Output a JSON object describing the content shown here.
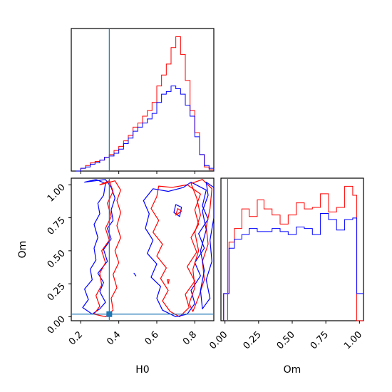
{
  "chart_data": {
    "type": "corner",
    "parameters": [
      "H0",
      "Om"
    ],
    "colors": {
      "red_series": "#ff0000",
      "blue_series": "#0000ff",
      "truth": "#1f77b4"
    },
    "truth": {
      "H0": 0.35,
      "Om": 0.02
    },
    "panels": [
      {
        "id": "hist_H0",
        "type": "histogram",
        "xlim": [
          0.15,
          0.9
        ],
        "bins": [
          0.175,
          0.2,
          0.225,
          0.25,
          0.275,
          0.3,
          0.325,
          0.35,
          0.375,
          0.4,
          0.425,
          0.45,
          0.475,
          0.5,
          0.525,
          0.55,
          0.575,
          0.6,
          0.625,
          0.65,
          0.675,
          0.7,
          0.725,
          0.75,
          0.775,
          0.8,
          0.825,
          0.85,
          0.875,
          0.9
        ],
        "series": [
          {
            "color": "red",
            "values": [
              0,
              2,
              4,
              6,
              7,
              8,
              10,
              12,
              15,
              18,
              22,
              26,
              32,
              35,
              40,
              44,
              50,
              62,
              70,
              78,
              90,
              98,
              85,
              66,
              44,
              28,
              12,
              3,
              1
            ]
          },
          {
            "color": "blue",
            "values": [
              0,
              2,
              3,
              5,
              6,
              8,
              10,
              11,
              13,
              16,
              20,
              24,
              29,
              32,
              35,
              38,
              42,
              50,
              56,
              58,
              62,
              60,
              56,
              48,
              40,
              25,
              12,
              4,
              2
            ]
          }
        ]
      },
      {
        "id": "hist_Om",
        "type": "histogram",
        "xlim": [
          -0.03,
          1.03
        ],
        "xticks": [
          "0.00",
          "0.25",
          "0.50",
          "0.75",
          "1.00"
        ],
        "xlabel": "Om",
        "bins": [
          -0.01,
          0.03,
          0.07,
          0.125,
          0.18,
          0.24,
          0.29,
          0.35,
          0.41,
          0.47,
          0.53,
          0.59,
          0.65,
          0.71,
          0.77,
          0.83,
          0.89,
          0.95,
          0.98,
          1.03
        ],
        "series": [
          {
            "color": "red",
            "values": [
              18,
              52,
              61,
              74,
              69,
              80,
              74,
              70,
              64,
              70,
              78,
              74,
              75,
              84,
              72,
              75,
              89,
              83,
              0
            ]
          },
          {
            "color": "blue",
            "values": [
              18,
              48,
              54,
              57,
              61,
              59,
              59,
              61,
              59,
              57,
              62,
              61,
              57,
              71,
              67,
              60,
              67,
              68,
              18
            ]
          }
        ]
      },
      {
        "id": "contour_H0_Om",
        "type": "contour",
        "xlim": [
          0.15,
          0.9
        ],
        "ylim": [
          -0.03,
          1.05
        ],
        "xticks": [
          "0.2",
          "0.4",
          "0.6",
          "0.8"
        ],
        "yticks": [
          "0.00",
          "0.25",
          "0.50",
          "0.75",
          "1.00"
        ],
        "xlabel": "H0",
        "ylabel": "Om",
        "contours": [
          {
            "color": "blue",
            "points": [
              [
                0.22,
                1.02
              ],
              [
                0.28,
                1.04
              ],
              [
                0.33,
                1.01
              ],
              [
                0.32,
                0.92
              ],
              [
                0.29,
                0.86
              ],
              [
                0.3,
                0.78
              ],
              [
                0.27,
                0.7
              ],
              [
                0.29,
                0.6
              ],
              [
                0.27,
                0.52
              ],
              [
                0.28,
                0.43
              ],
              [
                0.25,
                0.36
              ],
              [
                0.26,
                0.28
              ],
              [
                0.22,
                0.21
              ],
              [
                0.24,
                0.13
              ],
              [
                0.21,
                0.07
              ],
              [
                0.26,
                0.02
              ],
              [
                0.3,
                0.06
              ],
              [
                0.33,
                0.11
              ],
              [
                0.3,
                0.19
              ],
              [
                0.32,
                0.26
              ],
              [
                0.29,
                0.33
              ],
              [
                0.34,
                0.42
              ],
              [
                0.32,
                0.51
              ],
              [
                0.36,
                0.59
              ],
              [
                0.34,
                0.67
              ],
              [
                0.37,
                0.73
              ],
              [
                0.36,
                0.81
              ],
              [
                0.38,
                0.9
              ],
              [
                0.36,
                0.98
              ],
              [
                0.33,
                1.04
              ]
            ]
          },
          {
            "color": "red",
            "points": [
              [
                0.3,
                1.0
              ],
              [
                0.35,
                1.03
              ],
              [
                0.37,
                0.95
              ],
              [
                0.34,
                0.86
              ],
              [
                0.36,
                0.76
              ],
              [
                0.33,
                0.67
              ],
              [
                0.35,
                0.58
              ],
              [
                0.31,
                0.5
              ],
              [
                0.33,
                0.41
              ],
              [
                0.3,
                0.33
              ],
              [
                0.31,
                0.24
              ],
              [
                0.28,
                0.16
              ],
              [
                0.3,
                0.08
              ],
              [
                0.27,
                0.02
              ],
              [
                0.33,
                0.0
              ],
              [
                0.37,
                0.05
              ],
              [
                0.36,
                0.14
              ],
              [
                0.39,
                0.22
              ],
              [
                0.37,
                0.32
              ],
              [
                0.4,
                0.41
              ],
              [
                0.38,
                0.5
              ],
              [
                0.41,
                0.6
              ],
              [
                0.39,
                0.69
              ],
              [
                0.41,
                0.79
              ],
              [
                0.39,
                0.88
              ],
              [
                0.41,
                0.96
              ],
              [
                0.38,
                1.03
              ]
            ]
          },
          {
            "color": "red",
            "points": [
              [
                0.61,
                0.99
              ],
              [
                0.68,
                0.98
              ],
              [
                0.76,
                1.0
              ],
              [
                0.83,
                0.93
              ],
              [
                0.8,
                0.81
              ],
              [
                0.82,
                0.7
              ],
              [
                0.78,
                0.6
              ],
              [
                0.81,
                0.49
              ],
              [
                0.76,
                0.38
              ],
              [
                0.8,
                0.27
              ],
              [
                0.75,
                0.17
              ],
              [
                0.77,
                0.07
              ],
              [
                0.72,
                0.0
              ],
              [
                0.67,
                0.04
              ],
              [
                0.63,
                0.12
              ],
              [
                0.66,
                0.2
              ],
              [
                0.62,
                0.29
              ],
              [
                0.65,
                0.37
              ],
              [
                0.6,
                0.46
              ],
              [
                0.63,
                0.55
              ],
              [
                0.58,
                0.64
              ],
              [
                0.61,
                0.73
              ],
              [
                0.57,
                0.82
              ],
              [
                0.6,
                0.91
              ]
            ]
          },
          {
            "color": "blue",
            "points": [
              [
                0.58,
                0.97
              ],
              [
                0.66,
                0.95
              ],
              [
                0.74,
                0.98
              ],
              [
                0.78,
                1.02
              ],
              [
                0.86,
                0.96
              ],
              [
                0.84,
                0.84
              ],
              [
                0.87,
                0.74
              ],
              [
                0.82,
                0.63
              ],
              [
                0.85,
                0.52
              ],
              [
                0.8,
                0.41
              ],
              [
                0.83,
                0.31
              ],
              [
                0.78,
                0.2
              ],
              [
                0.8,
                0.1
              ],
              [
                0.76,
                0.02
              ],
              [
                0.7,
                0.0
              ],
              [
                0.63,
                0.05
              ],
              [
                0.6,
                0.14
              ],
              [
                0.62,
                0.23
              ],
              [
                0.57,
                0.3
              ],
              [
                0.6,
                0.4
              ],
              [
                0.55,
                0.48
              ],
              [
                0.58,
                0.58
              ],
              [
                0.54,
                0.67
              ],
              [
                0.56,
                0.78
              ],
              [
                0.53,
                0.88
              ]
            ]
          },
          {
            "color": "red",
            "points": [
              [
                0.78,
                1.01
              ],
              [
                0.84,
                1.04
              ],
              [
                0.89,
                0.97
              ],
              [
                0.88,
                0.82
              ],
              [
                0.86,
                0.68
              ],
              [
                0.87,
                0.55
              ],
              [
                0.84,
                0.42
              ],
              [
                0.85,
                0.28
              ],
              [
                0.82,
                0.15
              ],
              [
                0.79,
                0.04
              ],
              [
                0.77,
                0.1
              ],
              [
                0.8,
                0.22
              ],
              [
                0.79,
                0.36
              ],
              [
                0.82,
                0.5
              ],
              [
                0.8,
                0.64
              ],
              [
                0.83,
                0.77
              ],
              [
                0.81,
                0.9
              ]
            ]
          },
          {
            "color": "blue",
            "points": [
              [
                0.86,
                1.02
              ],
              [
                0.9,
                0.98
              ],
              [
                0.9,
                0.75
              ],
              [
                0.88,
                0.58
              ],
              [
                0.89,
                0.42
              ],
              [
                0.86,
                0.28
              ],
              [
                0.88,
                0.14
              ],
              [
                0.84,
                0.06
              ],
              [
                0.83,
                0.2
              ],
              [
                0.85,
                0.35
              ],
              [
                0.83,
                0.5
              ],
              [
                0.86,
                0.66
              ],
              [
                0.84,
                0.8
              ],
              [
                0.87,
                0.92
              ]
            ]
          },
          {
            "color": "blue",
            "points": [
              [
                0.69,
                0.79
              ],
              [
                0.72,
                0.76
              ],
              [
                0.73,
                0.83
              ],
              [
                0.7,
                0.85
              ]
            ]
          },
          {
            "color": "red",
            "points": [
              [
                0.7,
                0.77
              ],
              [
                0.73,
                0.8
              ],
              [
                0.71,
                0.82
              ]
            ]
          },
          {
            "color": "blue",
            "points": [
              [
                0.48,
                0.33
              ],
              [
                0.49,
                0.31
              ]
            ]
          },
          {
            "color": "red",
            "points": [
              [
                0.655,
                0.28
              ],
              [
                0.66,
                0.25
              ],
              [
                0.665,
                0.28
              ]
            ]
          }
        ]
      }
    ]
  }
}
